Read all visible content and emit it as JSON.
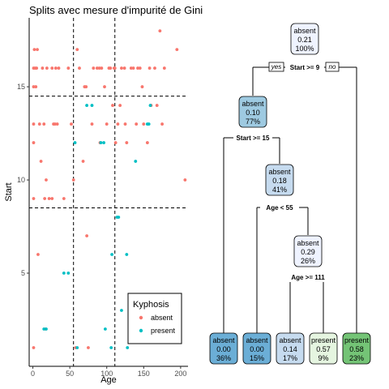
{
  "chart_data": [
    {
      "type": "scatter",
      "title": "Splits avec mesure d'impurité de Gini",
      "xlabel": "Age",
      "ylabel": "Start",
      "xlim": [
        -5,
        210
      ],
      "ylim": [
        0,
        18.7
      ],
      "x_ticks": [
        0,
        50,
        100,
        150,
        200
      ],
      "y_ticks": [
        5,
        10,
        15
      ],
      "grid": false,
      "vlines": [
        55,
        111
      ],
      "hlines": [
        8.5,
        14.5
      ],
      "legend": {
        "title": "Kyphosis",
        "position": "bottom-right",
        "entries": [
          {
            "label": "absent",
            "color": "#F8766D"
          },
          {
            "label": "present",
            "color": "#00BFC4"
          }
        ]
      },
      "series": [
        {
          "name": "absent",
          "color": "#F8766D",
          "points": [
            [
              1,
              16
            ],
            [
              1,
              15
            ],
            [
              1,
              13
            ],
            [
              1,
              12
            ],
            [
              1,
              9
            ],
            [
              1,
              1
            ],
            [
              2,
              17
            ],
            [
              3,
              16
            ],
            [
              4,
              15
            ],
            [
              5,
              16
            ],
            [
              6,
              17
            ],
            [
              7,
              6
            ],
            [
              9,
              13
            ],
            [
              11,
              11
            ],
            [
              13,
              16
            ],
            [
              15,
              13
            ],
            [
              16,
              9
            ],
            [
              17,
              2
            ],
            [
              18,
              10
            ],
            [
              19,
              16
            ],
            [
              22,
              9
            ],
            [
              26,
              16
            ],
            [
              26,
              9
            ],
            [
              28,
              13
            ],
            [
              30,
              13
            ],
            [
              31,
              16
            ],
            [
              33,
              13
            ],
            [
              35,
              16
            ],
            [
              42,
              9
            ],
            [
              48,
              16
            ],
            [
              52,
              13
            ],
            [
              55,
              10
            ],
            [
              58,
              1
            ],
            [
              60,
              17
            ],
            [
              63,
              16
            ],
            [
              68,
              11
            ],
            [
              70,
              15
            ],
            [
              72,
              15
            ],
            [
              73,
              7
            ],
            [
              75,
              1
            ],
            [
              80,
              13
            ],
            [
              82,
              16
            ],
            [
              87,
              16
            ],
            [
              90,
              16
            ],
            [
              91,
              12
            ],
            [
              93,
              16
            ],
            [
              97,
              15
            ],
            [
              100,
              13
            ],
            [
              103,
              16
            ],
            [
              105,
              16
            ],
            [
              108,
              14
            ],
            [
              110,
              16
            ],
            [
              111,
              16
            ],
            [
              112,
              12
            ],
            [
              115,
              13
            ],
            [
              118,
              14
            ],
            [
              120,
              16
            ],
            [
              124,
              16
            ],
            [
              125,
              13
            ],
            [
              127,
              12
            ],
            [
              131,
              3
            ],
            [
              133,
              16
            ],
            [
              136,
              16
            ],
            [
              140,
              13
            ],
            [
              142,
              16
            ],
            [
              145,
              16
            ],
            [
              148,
              15
            ],
            [
              150,
              13
            ],
            [
              155,
              12
            ],
            [
              158,
              16
            ],
            [
              160,
              14
            ],
            [
              165,
              16
            ],
            [
              168,
              14
            ],
            [
              172,
              18
            ],
            [
              175,
              13
            ],
            [
              178,
              16
            ],
            [
              195,
              17
            ],
            [
              206,
              10
            ]
          ]
        },
        {
          "name": "present",
          "color": "#00BFC4",
          "points": [
            [
              15,
              2
            ],
            [
              18,
              2
            ],
            [
              42,
              5
            ],
            [
              48,
              5
            ],
            [
              57,
              12
            ],
            [
              60,
              1
            ],
            [
              73,
              14
            ],
            [
              80,
              14
            ],
            [
              92,
              12
            ],
            [
              96,
              12
            ],
            [
              98,
              2
            ],
            [
              106,
              1
            ],
            [
              107,
              6
            ],
            [
              114,
              8
            ],
            [
              116,
              8
            ],
            [
              120,
              3
            ],
            [
              128,
              1
            ],
            [
              127,
              6
            ],
            [
              139,
              11
            ],
            [
              155,
              13
            ],
            [
              157,
              13
            ],
            [
              159,
              14
            ]
          ]
        }
      ]
    },
    {
      "type": "tree",
      "splits": [
        {
          "label": "Start >= 9",
          "yes": "yes",
          "no": "no"
        },
        {
          "label": "Start >= 15"
        },
        {
          "label": "Age < 55"
        },
        {
          "label": "Age >= 111"
        }
      ],
      "nodes": [
        {
          "class": "absent",
          "prob": "0.21",
          "pct": "100%",
          "fill": "#EFF3FF"
        },
        {
          "class": "absent",
          "prob": "0.10",
          "pct": "77%",
          "fill": "#9ECAE1"
        },
        {
          "class": "absent",
          "prob": "0.18",
          "pct": "41%",
          "fill": "#C6DBEF"
        },
        {
          "class": "absent",
          "prob": "0.29",
          "pct": "26%",
          "fill": "#EFF3FF"
        }
      ],
      "leaves": [
        {
          "class": "absent",
          "prob": "0.00",
          "pct": "36%",
          "fill": "#6BAED6"
        },
        {
          "class": "absent",
          "prob": "0.00",
          "pct": "15%",
          "fill": "#6BAED6"
        },
        {
          "class": "absent",
          "prob": "0.14",
          "pct": "17%",
          "fill": "#C6DBEF"
        },
        {
          "class": "present",
          "prob": "0.57",
          "pct": "9%",
          "fill": "#E5F5E0"
        },
        {
          "class": "present",
          "prob": "0.58",
          "pct": "23%",
          "fill": "#74C476"
        }
      ]
    }
  ]
}
